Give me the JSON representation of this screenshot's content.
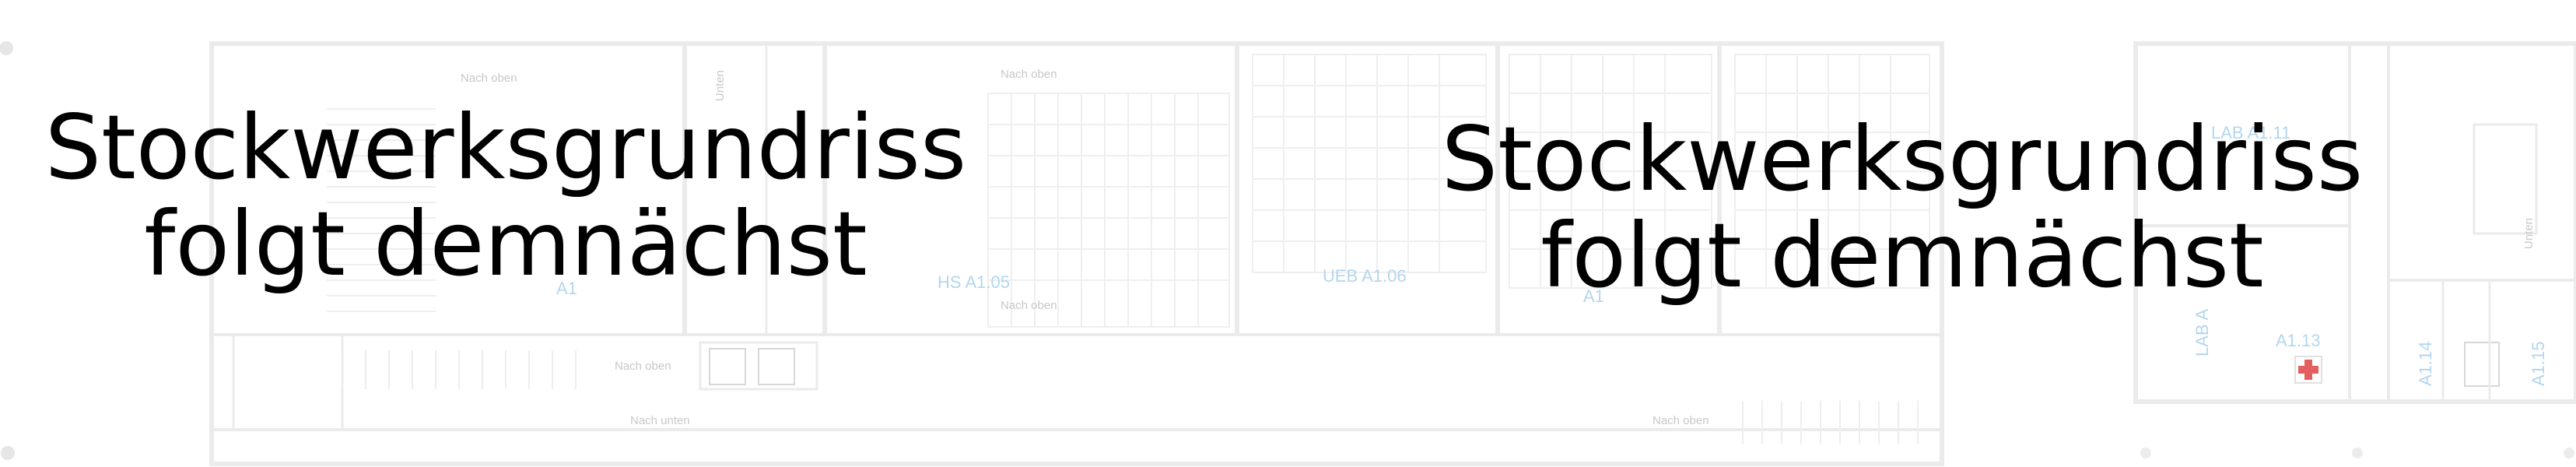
{
  "overlay": {
    "left": {
      "line1": "Stockwerksgrundriss",
      "line2": "folgt demnächst"
    },
    "right": {
      "line1": "Stockwerksgrundriss",
      "line2": "folgt demnächst"
    }
  },
  "floorplan": {
    "line_color": "#ebebeb",
    "room_label_color": "#b3d6ee",
    "first_aid_color": "#e46060",
    "stair_labels": {
      "nach_oben_top_left": "Nach oben",
      "unten_vertical": "Unten",
      "nach_oben_top_center": "Nach oben",
      "nach_oben_mid": "Nach oben",
      "nach_oben_lower": "Nach oben",
      "nach_unten_lower": "Nach unten",
      "nach_oben_right": "Nach oben",
      "unten_right": "Unten"
    },
    "room_labels": {
      "hs_a105": "HS A1.05",
      "ueb_a106": "UEB A1.06",
      "a104_partial": "A1",
      "a107_partial": "A1",
      "lab_a111": "LAB A1.11",
      "lab_a112": "LAB A",
      "a113": "A1.13",
      "a114": "A1.14",
      "a115": "A1.15"
    }
  }
}
